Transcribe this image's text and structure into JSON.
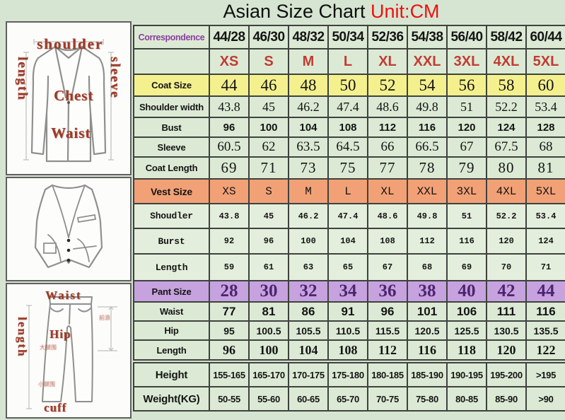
{
  "title": {
    "main": "Asian Size Chart",
    "unit": "Unit:CM"
  },
  "colors": {
    "background": "#d6e5d1",
    "cell_green": "#dcead5",
    "coat_size_yellow": "#f4f08e",
    "vest_size_orange": "#f2a176",
    "pant_size_purple": "#c6a2de",
    "unit_red": "#ed1111",
    "size_letter_red": "#c23b33",
    "correspondence_purple": "#8a3f9f",
    "pant_number_purple": "#4e2470",
    "diagram_label_red": "#9c3a28",
    "table_border": "#3e423e"
  },
  "diagrams": {
    "jacket": {
      "labels": {
        "shoulder": "shoulder",
        "length": "length",
        "sleeve": "sleeve",
        "chest": "Chest",
        "waist": "Waist"
      }
    },
    "vest": {},
    "pants": {
      "labels": {
        "waist": "Waist",
        "length": "length",
        "hip": "Hip",
        "cuff": "cuff",
        "front_rise_cn": "前浪",
        "thigh_cn": "大腿围",
        "calf_cn": "小腿围"
      }
    }
  },
  "chart_data": {
    "type": "table",
    "title": "Asian Size Chart",
    "unit": "Unit:CM",
    "rows": [
      {
        "kind": "correspondence",
        "label": "Correspondence",
        "values": [
          "44/28",
          "46/30",
          "48/32",
          "50/34",
          "52/36",
          "54/38",
          "56/40",
          "58/42",
          "60/44"
        ]
      },
      {
        "kind": "size-letters",
        "label": "",
        "values": [
          "XS",
          "S",
          "M",
          "L",
          "XL",
          "XXL",
          "3XL",
          "4XL",
          "5XL"
        ]
      },
      {
        "kind": "coat-size",
        "label": "Coat Size",
        "values": [
          "44",
          "46",
          "48",
          "50",
          "52",
          "54",
          "56",
          "58",
          "60"
        ]
      },
      {
        "kind": "shoulder",
        "label": "Shoulder width",
        "values": [
          "43.8",
          "45",
          "46.2",
          "47.4",
          "48.6",
          "49.8",
          "51",
          "52.2",
          "53.4"
        ]
      },
      {
        "kind": "bust",
        "label": "Bust",
        "values": [
          "96",
          "100",
          "104",
          "108",
          "112",
          "116",
          "120",
          "124",
          "128"
        ]
      },
      {
        "kind": "sleeve",
        "label": "Sleeve",
        "values": [
          "60.5",
          "62",
          "63.5",
          "64.5",
          "66",
          "66.5",
          "67",
          "67.5",
          "68"
        ]
      },
      {
        "kind": "coat-length",
        "label": "Coat Length",
        "values": [
          "69",
          "71",
          "73",
          "75",
          "77",
          "78",
          "79",
          "80",
          "81"
        ]
      },
      {
        "kind": "vest-size",
        "label": "Vest Size",
        "values": [
          "XS",
          "S",
          "M",
          "L",
          "XL",
          "XXL",
          "3XL",
          "4XL",
          "5XL"
        ]
      },
      {
        "kind": "vest-shoulder",
        "label": "Shoudler",
        "values": [
          "43.8",
          "45",
          "46.2",
          "47.4",
          "48.6",
          "49.8",
          "51",
          "52.2",
          "53.4"
        ]
      },
      {
        "kind": "vest-bust",
        "label": "Burst",
        "values": [
          "92",
          "96",
          "100",
          "104",
          "108",
          "112",
          "116",
          "120",
          "124"
        ]
      },
      {
        "kind": "vest-length",
        "label": "Length",
        "values": [
          "59",
          "61",
          "63",
          "65",
          "67",
          "68",
          "69",
          "70",
          "71"
        ]
      },
      {
        "kind": "pant-size",
        "label": "Pant Size",
        "values": [
          "28",
          "30",
          "32",
          "34",
          "36",
          "38",
          "40",
          "42",
          "44"
        ]
      },
      {
        "kind": "waist",
        "label": "Waist",
        "values": [
          "77",
          "81",
          "86",
          "91",
          "96",
          "101",
          "106",
          "111",
          "116"
        ]
      },
      {
        "kind": "hip",
        "label": "Hip",
        "values": [
          "95",
          "100.5",
          "105.5",
          "110.5",
          "115.5",
          "120.5",
          "125.5",
          "130.5",
          "135.5"
        ]
      },
      {
        "kind": "pant-length",
        "label": "Length",
        "values": [
          "96",
          "100",
          "104",
          "108",
          "112",
          "116",
          "118",
          "120",
          "122"
        ]
      }
    ],
    "body_rows": [
      {
        "kind": "height",
        "label": "Height",
        "values": [
          "155-165",
          "165-170",
          "170-175",
          "175-180",
          "180-185",
          "185-190",
          "190-195",
          "195-200",
          ">195"
        ]
      },
      {
        "kind": "weight",
        "label": "Weight(KG)",
        "values": [
          "50-55",
          "55-60",
          "60-65",
          "65-70",
          "70-75",
          "75-80",
          "80-85",
          "85-90",
          ">90"
        ]
      }
    ]
  }
}
